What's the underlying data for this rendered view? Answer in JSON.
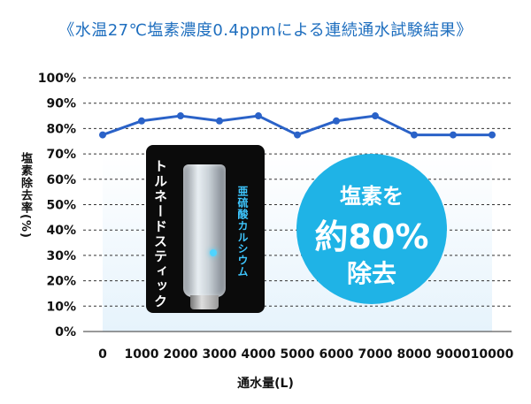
{
  "title": "《水温27℃塩素濃度0.4ppmによる連続通水試験結果》",
  "colors": {
    "title": "#1f6fbf",
    "line": "#2a62c8",
    "badge": "#1fb3e6",
    "band": "#e6f3fc"
  },
  "product": {
    "name": "トルネードスティック",
    "media_label": "亜硫酸カルシウム"
  },
  "badge": {
    "line1": "塩素を",
    "line2": "約80%",
    "line3": "除去"
  },
  "chart_data": {
    "type": "line",
    "xlabel": "通水量(L)",
    "ylabel": "塩素除去率(%)",
    "x": [
      0,
      1000,
      2000,
      3000,
      4000,
      5000,
      6000,
      7000,
      8000,
      9000,
      10000
    ],
    "x_tick_labels": [
      "0",
      "1000",
      "2000",
      "3000",
      "4000",
      "5000",
      "6000",
      "7000",
      "8000",
      "9000",
      "10000"
    ],
    "series": [
      {
        "values": [
          77.5,
          83,
          85,
          83,
          85,
          77.5,
          83,
          85,
          77.5,
          77.5,
          77.5
        ]
      }
    ],
    "ylim": [
      0,
      100
    ],
    "y_ticks": [
      0,
      10,
      20,
      30,
      40,
      50,
      60,
      70,
      80,
      90,
      100
    ],
    "y_tick_labels": [
      "0%",
      "10%",
      "20%",
      "30%",
      "40%",
      "50%",
      "60%",
      "70%",
      "80%",
      "90%",
      "100%"
    ],
    "grid": true,
    "grid_style": "dashed"
  }
}
